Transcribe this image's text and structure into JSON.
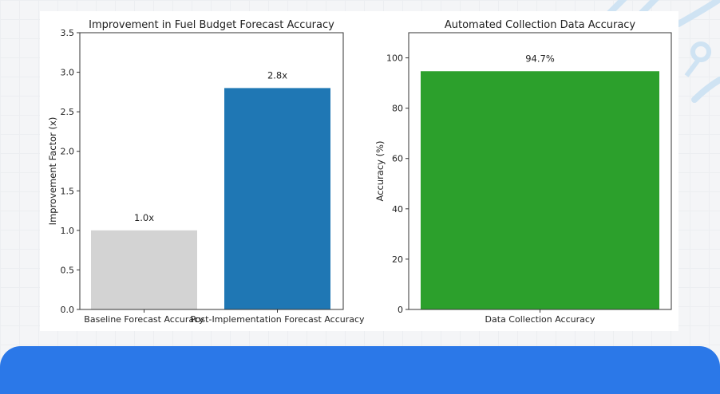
{
  "colors": {
    "baseline": "#d3d3d3",
    "post": "#1f77b4",
    "collection": "#2ca02c",
    "banner": "#2b78e8"
  },
  "chart_data": [
    {
      "type": "bar",
      "title": "Improvement in Fuel Budget Forecast Accuracy",
      "xlabel": "",
      "ylabel": "Improvement Factor (x)",
      "categories": [
        "Baseline Forecast Accuracy",
        "Post-Implementation Forecast Accuracy"
      ],
      "values": [
        1.0,
        2.8
      ],
      "data_labels": [
        "1.0x",
        "2.8x"
      ],
      "ylim": [
        0,
        3.5
      ],
      "yticks": [
        "0.0",
        "0.5",
        "1.0",
        "1.5",
        "2.0",
        "2.5",
        "3.0",
        "3.5"
      ],
      "grid": false
    },
    {
      "type": "bar",
      "title": "Automated Collection Data Accuracy",
      "xlabel": "",
      "ylabel": "Accuracy (%)",
      "categories": [
        "Data Collection Accuracy"
      ],
      "values": [
        94.7
      ],
      "data_labels": [
        "94.7%"
      ],
      "ylim": [
        0,
        110
      ],
      "yticks": [
        "0",
        "20",
        "40",
        "60",
        "80",
        "100"
      ],
      "grid": false
    }
  ]
}
